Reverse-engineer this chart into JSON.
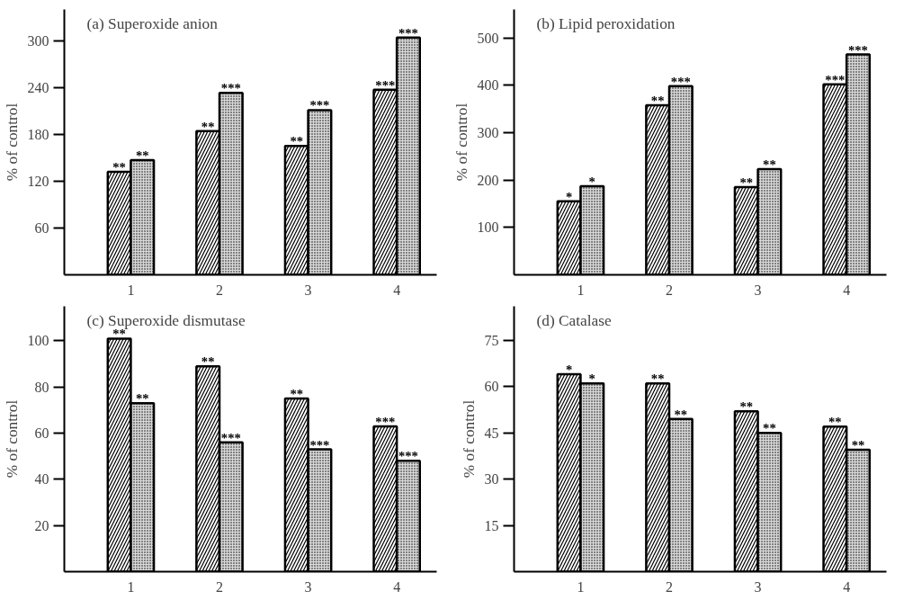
{
  "chart_data": [
    {
      "type": "bar",
      "title": "(a) Superoxide anion",
      "ylabel": "% of control",
      "categories": [
        "1",
        "2",
        "3",
        "4"
      ],
      "ylim": [
        0,
        340
      ],
      "yticks": [
        60,
        120,
        180,
        240,
        300
      ],
      "grid": false,
      "series": [
        {
          "color": "#ffffff",
          "values": [
            132,
            184,
            165,
            237
          ],
          "value_labels": [
            "**",
            "**",
            "**",
            "***"
          ]
        },
        {
          "color": "#d9d9d9",
          "values": [
            147,
            233,
            211,
            304
          ],
          "value_labels": [
            "**",
            "***",
            "***",
            "***"
          ]
        }
      ]
    },
    {
      "type": "bar",
      "title": "(b) Lipid peroxidation",
      "ylabel": "% of control",
      "categories": [
        "1",
        "2",
        "3",
        "4"
      ],
      "ylim": [
        0,
        560
      ],
      "yticks": [
        100,
        200,
        300,
        400,
        500
      ],
      "grid": false,
      "series": [
        {
          "color": "#ffffff",
          "values": [
            155,
            358,
            185,
            402
          ],
          "value_labels": [
            "*",
            "**",
            "**",
            "***"
          ]
        },
        {
          "color": "#d9d9d9",
          "values": [
            187,
            398,
            223,
            465
          ],
          "value_labels": [
            "*",
            "***",
            "**",
            "***"
          ]
        }
      ]
    },
    {
      "type": "bar",
      "title": "(c) Superoxide dismutase",
      "ylabel": "% of control",
      "categories": [
        "1",
        "2",
        "3",
        "4"
      ],
      "ylim": [
        0,
        115
      ],
      "yticks": [
        20,
        40,
        60,
        80,
        100
      ],
      "grid": false,
      "series": [
        {
          "color": "#ffffff",
          "values": [
            101,
            89,
            75,
            63
          ],
          "value_labels": [
            "**",
            "**",
            "**",
            "***"
          ]
        },
        {
          "color": "#d9d9d9",
          "values": [
            73,
            56,
            53,
            48
          ],
          "value_labels": [
            "**",
            "***",
            "***",
            "***"
          ]
        }
      ]
    },
    {
      "type": "bar",
      "title": "(d) Catalase",
      "ylabel": "% of control",
      "categories": [
        "1",
        "2",
        "3",
        "4"
      ],
      "ylim": [
        0,
        86
      ],
      "yticks": [
        15,
        30,
        45,
        60,
        75
      ],
      "grid": false,
      "series": [
        {
          "color": "#ffffff",
          "values": [
            64,
            61,
            52,
            47
          ],
          "value_labels": [
            "*",
            "**",
            "**",
            "**"
          ]
        },
        {
          "color": "#d9d9d9",
          "values": [
            61,
            49.5,
            45,
            39.5
          ],
          "value_labels": [
            "*",
            "**",
            "**",
            "**"
          ]
        }
      ]
    }
  ]
}
